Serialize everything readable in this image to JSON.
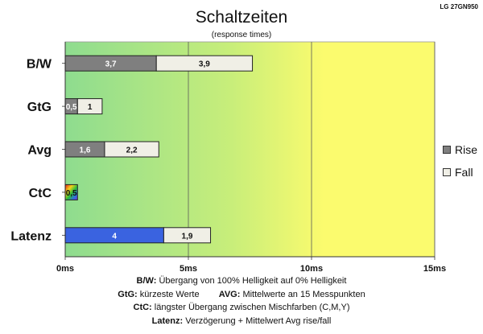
{
  "chart_data": {
    "type": "bar",
    "orientation": "horizontal",
    "stacked": true,
    "title": "Schaltzeiten",
    "subtitle": "(response times)",
    "corner_label": "LG 27GN950",
    "categories": [
      "B/W",
      "GtG",
      "Avg",
      "CtC",
      "Latenz"
    ],
    "series": [
      {
        "name": "Rise",
        "color": "#7f7f7f",
        "values": [
          3.7,
          0.5,
          1.6,
          0.5,
          4
        ],
        "labels": [
          "3,7",
          "0,5",
          "1,6",
          "0,5",
          "4"
        ]
      },
      {
        "name": "Fall",
        "color": "#f0efe6",
        "values": [
          3.9,
          1,
          2.2,
          null,
          1.9
        ],
        "labels": [
          "3,9",
          "1",
          "2,2",
          "",
          "1,9"
        ]
      }
    ],
    "special_colors": {
      "latency_rise": "#3a63e0"
    },
    "xlim": [
      0,
      15
    ],
    "xticks": [
      0,
      5,
      10,
      15
    ],
    "xtick_labels": [
      "0ms",
      "5ms",
      "10ms",
      "15ms"
    ],
    "background_gradient": [
      "#8edc8f",
      "#c8ee7a",
      "#fbfb6e"
    ],
    "legend_position": "right",
    "grid": "vertical"
  },
  "footnotes": {
    "bw_key": "B/W:",
    "bw_text": "Übergang von 100% Helligkeit auf 0% Helligkeit",
    "gtg_key": "GtG:",
    "gtg_text": "kürzeste Werte",
    "avg_key": "AVG:",
    "avg_text": "Mittelwerte an 15 Messpunkten",
    "ctc_key": "CtC:",
    "ctc_text": "längster Übergang zwischen Mischfarben (C,M,Y)",
    "latenz_key": "Latenz:",
    "latenz_text": "Verzögerung + Mittelwert Avg rise/fall"
  }
}
